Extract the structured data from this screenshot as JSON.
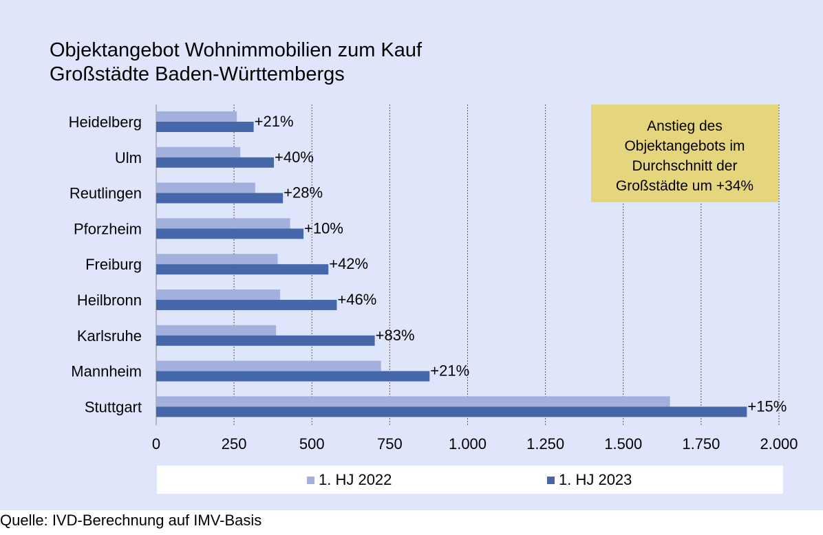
{
  "title_lines": [
    "Objektangebot Wohnimmobilien zum Kauf",
    "Großstädte Baden-Württembergs"
  ],
  "callout_lines": [
    "Anstieg des",
    "Objektangebots im",
    "Durchschnitt der",
    "Großstädte um +34%"
  ],
  "source": "Quelle: IVD-Berechnung auf IMV-Basis",
  "colors": {
    "background": "#dfe6fb",
    "series_2022": "#a3afdc",
    "series_2023": "#4767ab",
    "callout": "#e5d67e"
  },
  "chart_data": {
    "type": "bar",
    "orientation": "horizontal",
    "title": "Objektangebot Wohnimmobilien zum Kauf Großstädte Baden-Württembergs",
    "categories": [
      "Heidelberg",
      "Ulm",
      "Reutlingen",
      "Pforzheim",
      "Freiburg",
      "Heilbronn",
      "Karlsruhe",
      "Mannheim",
      "Stuttgart"
    ],
    "series": [
      {
        "name": "1. HJ 2022",
        "values": [
          259,
          270,
          318,
          430,
          390,
          398,
          385,
          722,
          1650
        ]
      },
      {
        "name": "1. HJ 2023",
        "values": [
          313,
          378,
          407,
          473,
          553,
          580,
          702,
          878,
          1897
        ]
      }
    ],
    "change_labels": [
      "+21%",
      "+40%",
      "+28%",
      "+10%",
      "+42%",
      "+46%",
      "+83%",
      "+21%",
      "+15%"
    ],
    "xlim": [
      0,
      2000
    ],
    "xticks": [
      0,
      250,
      500,
      750,
      1000,
      1250,
      1500,
      1750,
      2000
    ],
    "xtick_labels": [
      "0",
      "250",
      "500",
      "750",
      "1.000",
      "1.250",
      "1.500",
      "1.750",
      "2.000"
    ],
    "grid": "vertical dashed",
    "legend": "bottom"
  }
}
